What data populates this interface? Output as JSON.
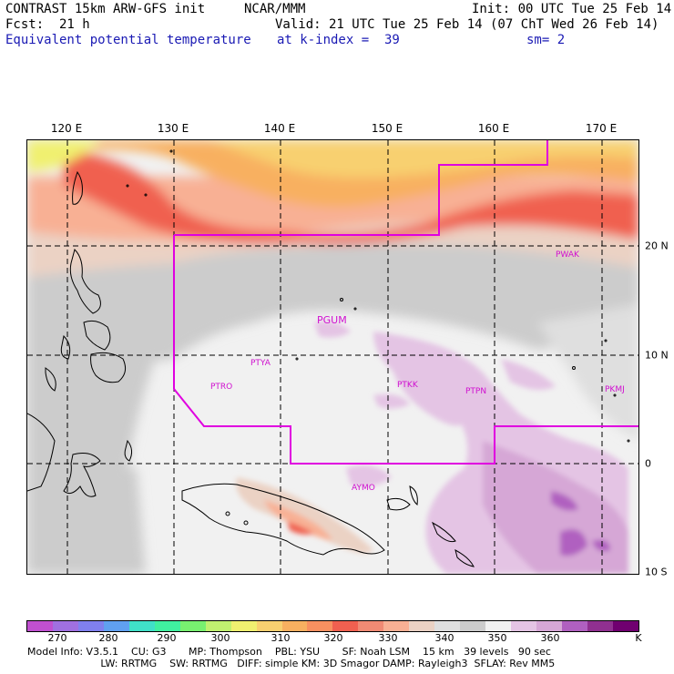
{
  "header": {
    "model_title": "CONTRAST 15km ARW-GFS init",
    "org": "NCAR/MMM",
    "init": "Init: 00 UTC Tue 25 Feb 14",
    "fcst": "Fcst:  21 h",
    "valid": "Valid: 21 UTC Tue 25 Feb 14 (07 ChT Wed 26 Feb 14)",
    "field": "Equivalent potential temperature",
    "level": "at k-index =  39",
    "smooth": "sm= 2"
  },
  "map": {
    "lon_labels": [
      "120 E",
      "130 E",
      "140 E",
      "150 E",
      "160 E",
      "170 E"
    ],
    "lat_labels": [
      "20 N",
      "10 N",
      "0",
      "10 S"
    ],
    "stations": [
      "PWAK",
      "PGUM",
      "PTYA",
      "PTRO",
      "PTKK",
      "PTPN",
      "PKMJ",
      "AYMO"
    ]
  },
  "colorbar": {
    "colors": [
      "#c050d0",
      "#a070e0",
      "#8080ee",
      "#60a0f0",
      "#40e0c8",
      "#40f0a0",
      "#78f070",
      "#c0f070",
      "#f0f070",
      "#f8d070",
      "#f8b060",
      "#f89060",
      "#f06050",
      "#f08a74",
      "#f8b094",
      "#ebd2c4",
      "#dfdfdf",
      "#cccccc",
      "#f1f1f1",
      "#e4c4e4",
      "#d6a7d6",
      "#b060c0",
      "#903090",
      "#700070"
    ],
    "labels": [
      "270",
      "280",
      "290",
      "300",
      "310",
      "320",
      "330",
      "340",
      "350",
      "360",
      "K"
    ]
  },
  "footer": {
    "line1": "Model Info: V3.5.1    CU: G3       MP: Thompson    PBL: YSU       SF: Noah LSM    15 km   39 levels   90 sec",
    "line2": "                       LW: RRTMG    SW: RRTMG   DIFF: simple KM: 3D Smagor DAMP: Rayleigh3  SFLAY: Rev MM5"
  }
}
